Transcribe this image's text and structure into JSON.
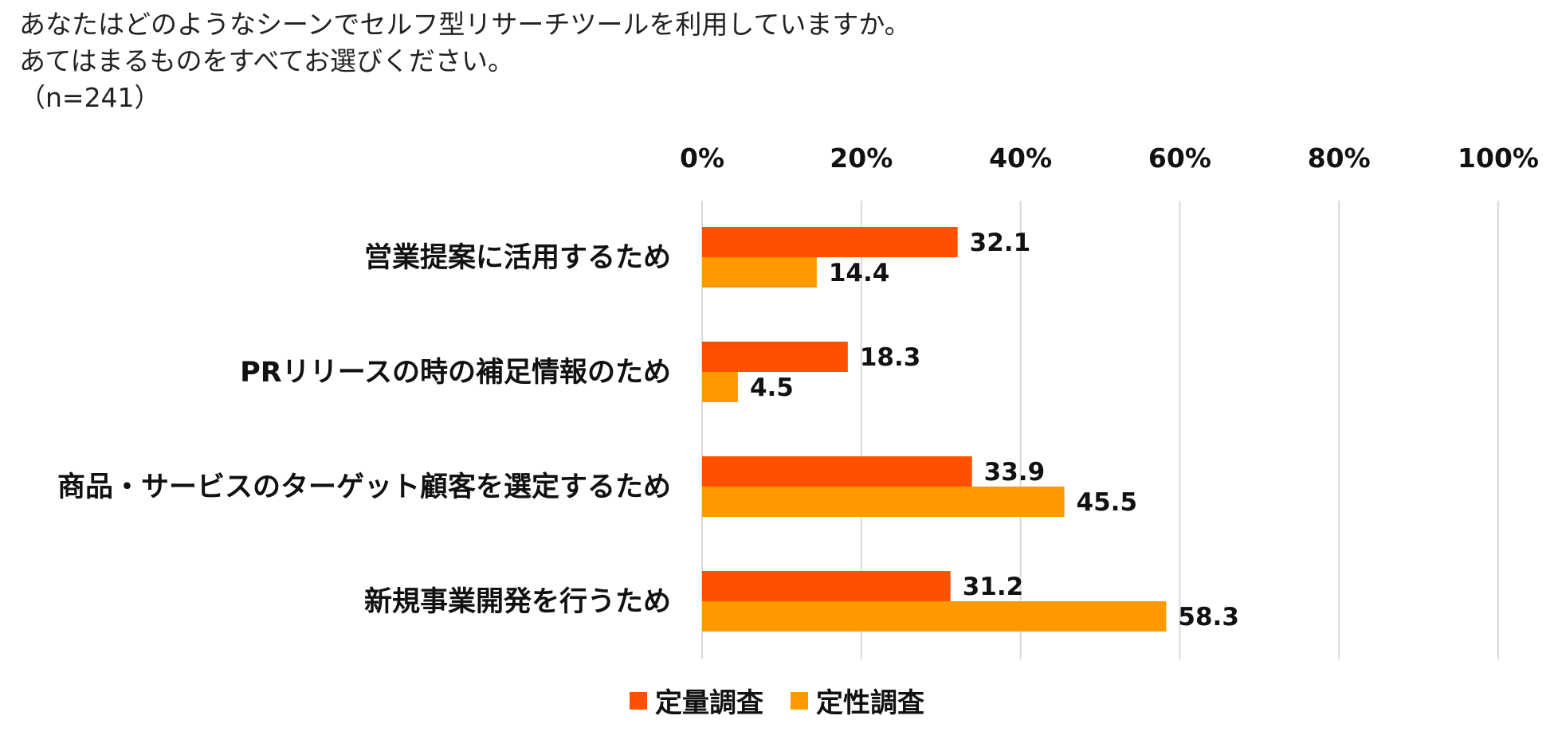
{
  "question": {
    "line1": "あなたはどのようなシーンでセルフ型リサーチツールを利用していますか。",
    "line2": "あてはまるものをすべてお選びください。",
    "line3": "（n=241）"
  },
  "chart_data": {
    "type": "bar",
    "orientation": "horizontal",
    "categories": [
      "営業提案に活用するため",
      "PRリリースの時の補足情報のため",
      "商品・サービスのターゲット顧客を選定するため",
      "新規事業開発を行うため"
    ],
    "series": [
      {
        "name": "定量調査",
        "color": "#FF5000",
        "values": [
          32.1,
          18.3,
          33.9,
          31.2
        ]
      },
      {
        "name": "定性調査",
        "color": "#FF9900",
        "values": [
          14.4,
          4.5,
          45.5,
          58.3
        ]
      }
    ],
    "xaxis": {
      "min": 0,
      "max": 100,
      "position": "top",
      "ticks": [
        0,
        20,
        40,
        60,
        80,
        100
      ],
      "tick_labels": [
        "0%",
        "20%",
        "40%",
        "60%",
        "80%",
        "100%"
      ]
    },
    "grid": true,
    "legend": "bottom-center"
  }
}
